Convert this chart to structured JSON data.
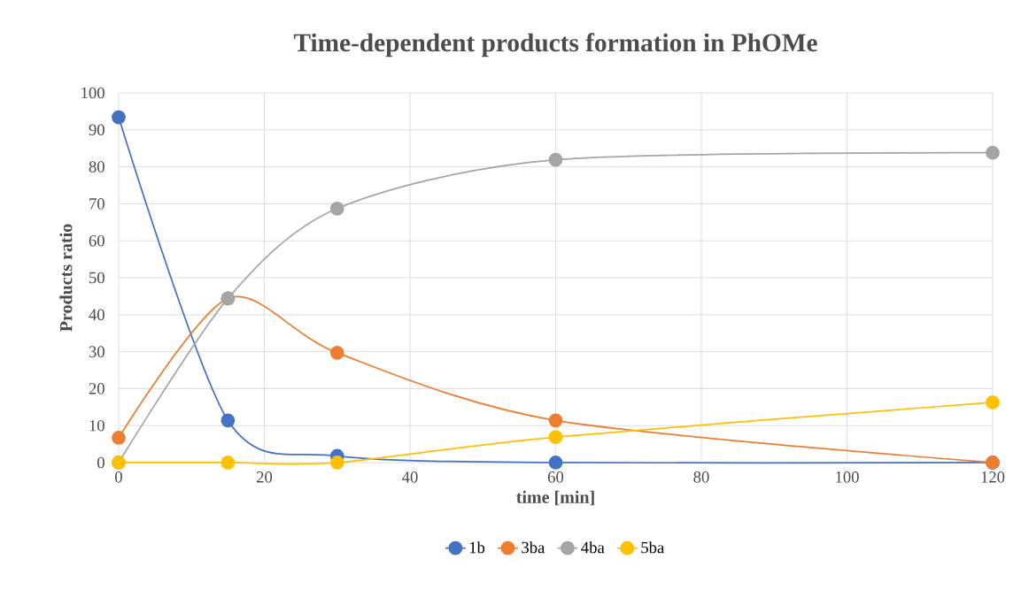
{
  "chart_data": {
    "type": "line",
    "title": "Time-dependent products formation in PhOMe",
    "xlabel": "time [min]",
    "ylabel": "Products ratio",
    "x": [
      0,
      15,
      30,
      60,
      120
    ],
    "series": [
      {
        "name": "1b",
        "color": "#4472c4",
        "values": [
          93.4,
          11.4,
          1.8,
          0,
          0
        ]
      },
      {
        "name": "3ba",
        "color": "#ed7d31",
        "values": [
          6.7,
          44.4,
          29.7,
          11.4,
          0
        ]
      },
      {
        "name": "4ba",
        "color": "#a5a5a5",
        "values": [
          0,
          44.4,
          68.7,
          81.9,
          83.8
        ]
      },
      {
        "name": "5ba",
        "color": "#ffc000",
        "values": [
          0,
          0,
          0,
          6.9,
          16.3
        ]
      }
    ],
    "xlim": [
      0,
      120
    ],
    "xticks": [
      0,
      20,
      40,
      60,
      80,
      100,
      120
    ],
    "ylim": [
      0,
      100
    ],
    "yticks": [
      0,
      10,
      20,
      30,
      40,
      50,
      60,
      70,
      80,
      90,
      100
    ],
    "grid": true,
    "legend": "bottom",
    "marker": "circle",
    "line_style": "solid"
  }
}
